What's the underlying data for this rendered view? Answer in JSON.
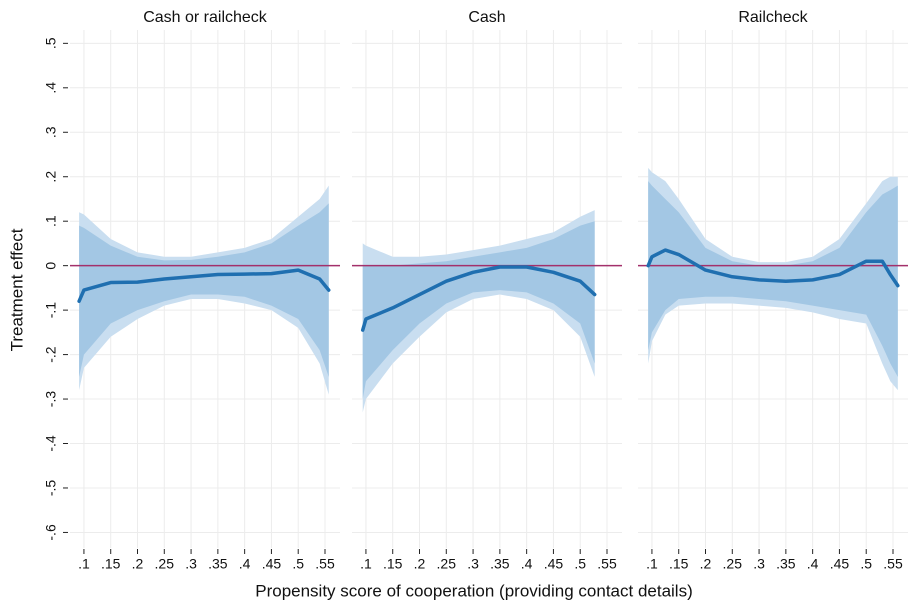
{
  "xlabel": "Propensity score of cooperation (providing contact details)",
  "ylabel": "Treatment effect",
  "chart_data": [
    {
      "type": "line_band",
      "title": "Cash or railcheck",
      "x": [
        0.091,
        0.1,
        0.15,
        0.2,
        0.25,
        0.3,
        0.35,
        0.4,
        0.45,
        0.5,
        0.54,
        0.557
      ],
      "values": [
        -0.08,
        -0.055,
        -0.038,
        -0.037,
        -0.03,
        -0.025,
        -0.02,
        -0.019,
        -0.018,
        -0.01,
        -0.03,
        -0.055
      ],
      "band_outer": {
        "upper": [
          0.12,
          0.115,
          0.06,
          0.03,
          0.02,
          0.02,
          0.03,
          0.04,
          0.06,
          0.11,
          0.15,
          0.18
        ],
        "lower": [
          -0.28,
          -0.23,
          -0.16,
          -0.12,
          -0.09,
          -0.075,
          -0.075,
          -0.085,
          -0.1,
          -0.14,
          -0.22,
          -0.29
        ]
      },
      "band_inner": {
        "upper": [
          0.09,
          0.085,
          0.045,
          0.02,
          0.012,
          0.013,
          0.02,
          0.03,
          0.05,
          0.09,
          0.12,
          0.14
        ],
        "lower": [
          -0.25,
          -0.2,
          -0.13,
          -0.1,
          -0.08,
          -0.065,
          -0.065,
          -0.07,
          -0.09,
          -0.12,
          -0.19,
          -0.25
        ]
      },
      "color": "#1f6fb0",
      "band_outer_color": "#c9def0",
      "band_inner_color": "#a3c7e4",
      "reference_line": 0,
      "reference_color": "#a3306b",
      "xlim": [
        0.074,
        0.578
      ],
      "xticks": [
        {
          "value": 0.1,
          "label": ".1"
        },
        {
          "value": 0.15,
          "label": ".15"
        },
        {
          "value": 0.2,
          "label": ".2"
        },
        {
          "value": 0.25,
          "label": ".25"
        },
        {
          "value": 0.3,
          "label": ".3"
        },
        {
          "value": 0.35,
          "label": ".35"
        },
        {
          "value": 0.4,
          "label": ".4"
        },
        {
          "value": 0.45,
          "label": ".45"
        },
        {
          "value": 0.5,
          "label": ".5"
        },
        {
          "value": 0.55,
          "label": ".55"
        }
      ],
      "ylim": [
        -0.635,
        0.53
      ],
      "yticks": [
        {
          "value": 0.5,
          "label": ".5"
        },
        {
          "value": 0.4,
          "label": ".4"
        },
        {
          "value": 0.3,
          "label": ".3"
        },
        {
          "value": 0.2,
          "label": ".2"
        },
        {
          "value": 0.1,
          "label": ".1"
        },
        0,
        {
          "value": -0.1,
          "label": "-.1"
        },
        {
          "value": -0.2,
          "label": "-.2"
        },
        {
          "value": -0.3,
          "label": "-.3"
        },
        {
          "value": -0.4,
          "label": "-.4"
        },
        {
          "value": -0.5,
          "label": "-.5"
        },
        {
          "value": -0.6,
          "label": "-.6"
        }
      ],
      "grid": true
    },
    {
      "type": "line_band",
      "title": "Cash",
      "x": [
        0.094,
        0.1,
        0.15,
        0.2,
        0.25,
        0.3,
        0.35,
        0.4,
        0.45,
        0.5,
        0.527
      ],
      "values": [
        -0.145,
        -0.12,
        -0.095,
        -0.065,
        -0.035,
        -0.015,
        -0.003,
        -0.003,
        -0.015,
        -0.035,
        -0.065
      ],
      "band_outer": {
        "upper": [
          0.05,
          0.045,
          0.02,
          0.02,
          0.025,
          0.035,
          0.045,
          0.06,
          0.075,
          0.11,
          0.125
        ],
        "lower": [
          -0.33,
          -0.3,
          -0.22,
          -0.16,
          -0.105,
          -0.075,
          -0.065,
          -0.075,
          -0.1,
          -0.16,
          -0.25
        ]
      },
      "band_inner": {
        "upper": [
          0.0,
          0.0,
          0.0,
          0.005,
          0.01,
          0.02,
          0.03,
          0.04,
          0.06,
          0.09,
          0.1
        ],
        "lower": [
          -0.3,
          -0.26,
          -0.19,
          -0.13,
          -0.085,
          -0.06,
          -0.055,
          -0.06,
          -0.085,
          -0.13,
          -0.22
        ]
      },
      "color": "#1f6fb0",
      "band_outer_color": "#c9def0",
      "band_inner_color": "#a3c7e4",
      "reference_line": 0,
      "reference_color": "#a3306b",
      "xlim": [
        0.074,
        0.578
      ],
      "xticks": [
        {
          "value": 0.1,
          "label": ".1"
        },
        {
          "value": 0.15,
          "label": ".15"
        },
        {
          "value": 0.2,
          "label": ".2"
        },
        {
          "value": 0.25,
          "label": ".25"
        },
        {
          "value": 0.3,
          "label": ".3"
        },
        {
          "value": 0.35,
          "label": ".35"
        },
        {
          "value": 0.4,
          "label": ".4"
        },
        {
          "value": 0.45,
          "label": ".45"
        },
        {
          "value": 0.5,
          "label": ".5"
        },
        {
          "value": 0.55,
          "label": ".55"
        }
      ],
      "grid": true
    },
    {
      "type": "line_band",
      "title": "Railcheck",
      "x": [
        0.093,
        0.1,
        0.125,
        0.15,
        0.2,
        0.25,
        0.3,
        0.35,
        0.4,
        0.45,
        0.5,
        0.53,
        0.545,
        0.559
      ],
      "values": [
        0.0,
        0.02,
        0.035,
        0.025,
        -0.01,
        -0.025,
        -0.032,
        -0.035,
        -0.032,
        -0.02,
        0.01,
        0.01,
        -0.02,
        -0.045
      ],
      "band_outer": {
        "upper": [
          0.22,
          0.21,
          0.19,
          0.15,
          0.06,
          0.02,
          0.008,
          0.008,
          0.02,
          0.06,
          0.14,
          0.19,
          0.2,
          0.2
        ],
        "lower": [
          -0.22,
          -0.17,
          -0.11,
          -0.09,
          -0.085,
          -0.085,
          -0.09,
          -0.095,
          -0.105,
          -0.12,
          -0.13,
          -0.22,
          -0.26,
          -0.28
        ]
      },
      "band_inner": {
        "upper": [
          0.19,
          0.18,
          0.15,
          0.12,
          0.04,
          0.01,
          0.0,
          0.0,
          0.01,
          0.04,
          0.12,
          0.16,
          0.17,
          0.18
        ],
        "lower": [
          -0.19,
          -0.15,
          -0.1,
          -0.075,
          -0.07,
          -0.07,
          -0.075,
          -0.08,
          -0.09,
          -0.1,
          -0.11,
          -0.18,
          -0.22,
          -0.25
        ]
      },
      "color": "#1f6fb0",
      "band_outer_color": "#c9def0",
      "band_inner_color": "#a3c7e4",
      "reference_line": 0,
      "reference_color": "#a3306b",
      "xlim": [
        0.074,
        0.578
      ],
      "xticks": [
        {
          "value": 0.1,
          "label": ".1"
        },
        {
          "value": 0.15,
          "label": ".15"
        },
        {
          "value": 0.2,
          "label": ".2"
        },
        {
          "value": 0.25,
          "label": ".25"
        },
        {
          "value": 0.3,
          "label": ".3"
        },
        {
          "value": 0.35,
          "label": ".35"
        },
        {
          "value": 0.4,
          "label": ".4"
        },
        {
          "value": 0.45,
          "label": ".45"
        },
        {
          "value": 0.5,
          "label": ".5"
        },
        {
          "value": 0.55,
          "label": ".55"
        }
      ],
      "grid": true
    }
  ]
}
